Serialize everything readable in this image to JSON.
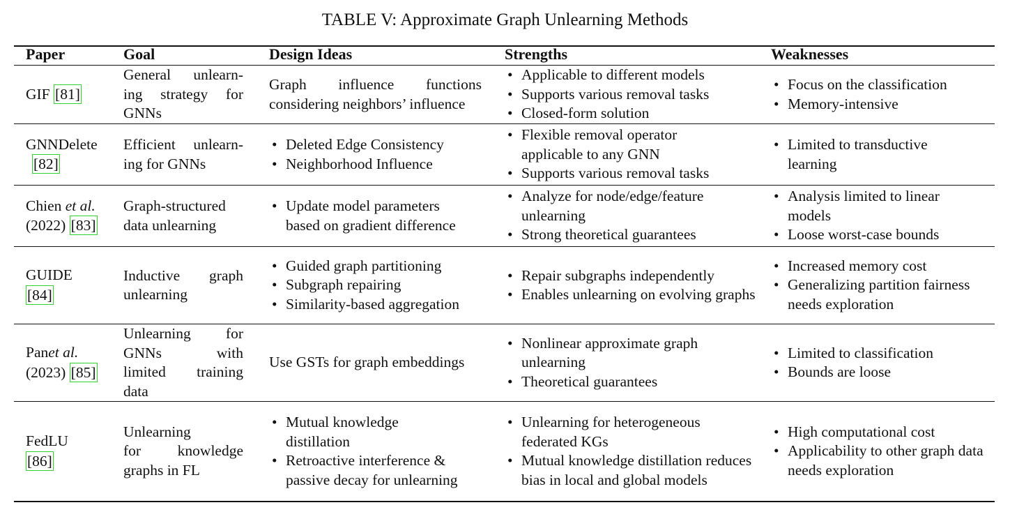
{
  "caption": "TABLE V: Approximate Graph Unlearning Methods",
  "headers": [
    "Paper",
    "Goal",
    "Design Ideas",
    "Strengths",
    "Weaknesses"
  ],
  "colors": {
    "rule": "#111111",
    "citation_box": "#2fd22f"
  },
  "rows": [
    {
      "paper": {
        "name": "GIF ",
        "ref": "[81]"
      },
      "goal_lines": [
        "General unlearn-",
        "ing strategy for",
        "GNNs"
      ],
      "design": {
        "text": "Graph influence functions considering neighbors’ influence"
      },
      "strengths": [
        "Applicable to different models",
        "Supports various removal tasks",
        "Closed-form solution"
      ],
      "weaknesses": [
        "Focus on the classification",
        "Memory-intensive"
      ]
    },
    {
      "paper": {
        "name": "GNNDelete",
        "ref": "[82]"
      },
      "goal_lines": [
        "Efficient unlearn-",
        "ing for GNNs"
      ],
      "design": {
        "bullets": [
          "Deleted Edge Consistency",
          "Neighborhood Influence"
        ]
      },
      "strengths": [
        "Flexible removal operator applicable to any GNN",
        "Supports various removal tasks"
      ],
      "weaknesses": [
        "Limited to transductive learning"
      ]
    },
    {
      "paper": {
        "name": "Chien ",
        "etal": "et al.",
        "year": "(2022) ",
        "ref": "[83]"
      },
      "goal_lines": [
        "Graph-structured",
        "data unlearning"
      ],
      "design": {
        "bullets": [
          "Update model parameters based on gradient difference"
        ]
      },
      "strengths": [
        "Analyze for node/edge/feature unlearning",
        "Strong theoretical guarantees"
      ],
      "weaknesses": [
        "Analysis limited to linear models",
        "Loose worst-case bounds"
      ]
    },
    {
      "paper": {
        "name": "GUIDE",
        "ref": "[84]"
      },
      "goal_lines": [
        "Inductive graph",
        "unlearning"
      ],
      "design": {
        "bullets": [
          "Guided graph partitioning",
          "Subgraph repairing",
          "Similarity-based aggregation"
        ]
      },
      "strengths": [
        "Repair subgraphs independently",
        "Enables unlearning on evolving graphs"
      ],
      "weaknesses": [
        "Increased memory cost",
        "Generalizing partition fairness needs exploration"
      ]
    },
    {
      "paper": {
        "name": "Pan",
        "etal": "et al.",
        "year": "(2023) ",
        "ref": "[85]"
      },
      "goal_lines": [
        "Unlearning for",
        "GNNs with",
        "limited training",
        "data"
      ],
      "design": {
        "text": "Use GSTs for graph embeddings"
      },
      "strengths": [
        "Nonlinear approximate graph unlearning",
        "Theoretical guarantees"
      ],
      "weaknesses": [
        "Limited to classification",
        "Bounds are loose"
      ]
    },
    {
      "paper": {
        "name": "FedLU",
        "ref": "[86]"
      },
      "goal_lines": [
        "Unlearning",
        "for knowledge",
        "graphs in FL"
      ],
      "design": {
        "bullets": [
          "Mutual knowledge distillation",
          "Retroactive interference & passive decay for unlearning"
        ]
      },
      "strengths": [
        "Unlearning for heterogeneous federated KGs",
        "Mutual knowledge distillation reduces bias in local and global models"
      ],
      "weaknesses": [
        "High computational cost",
        "Applicability to other graph data needs exploration"
      ]
    }
  ]
}
